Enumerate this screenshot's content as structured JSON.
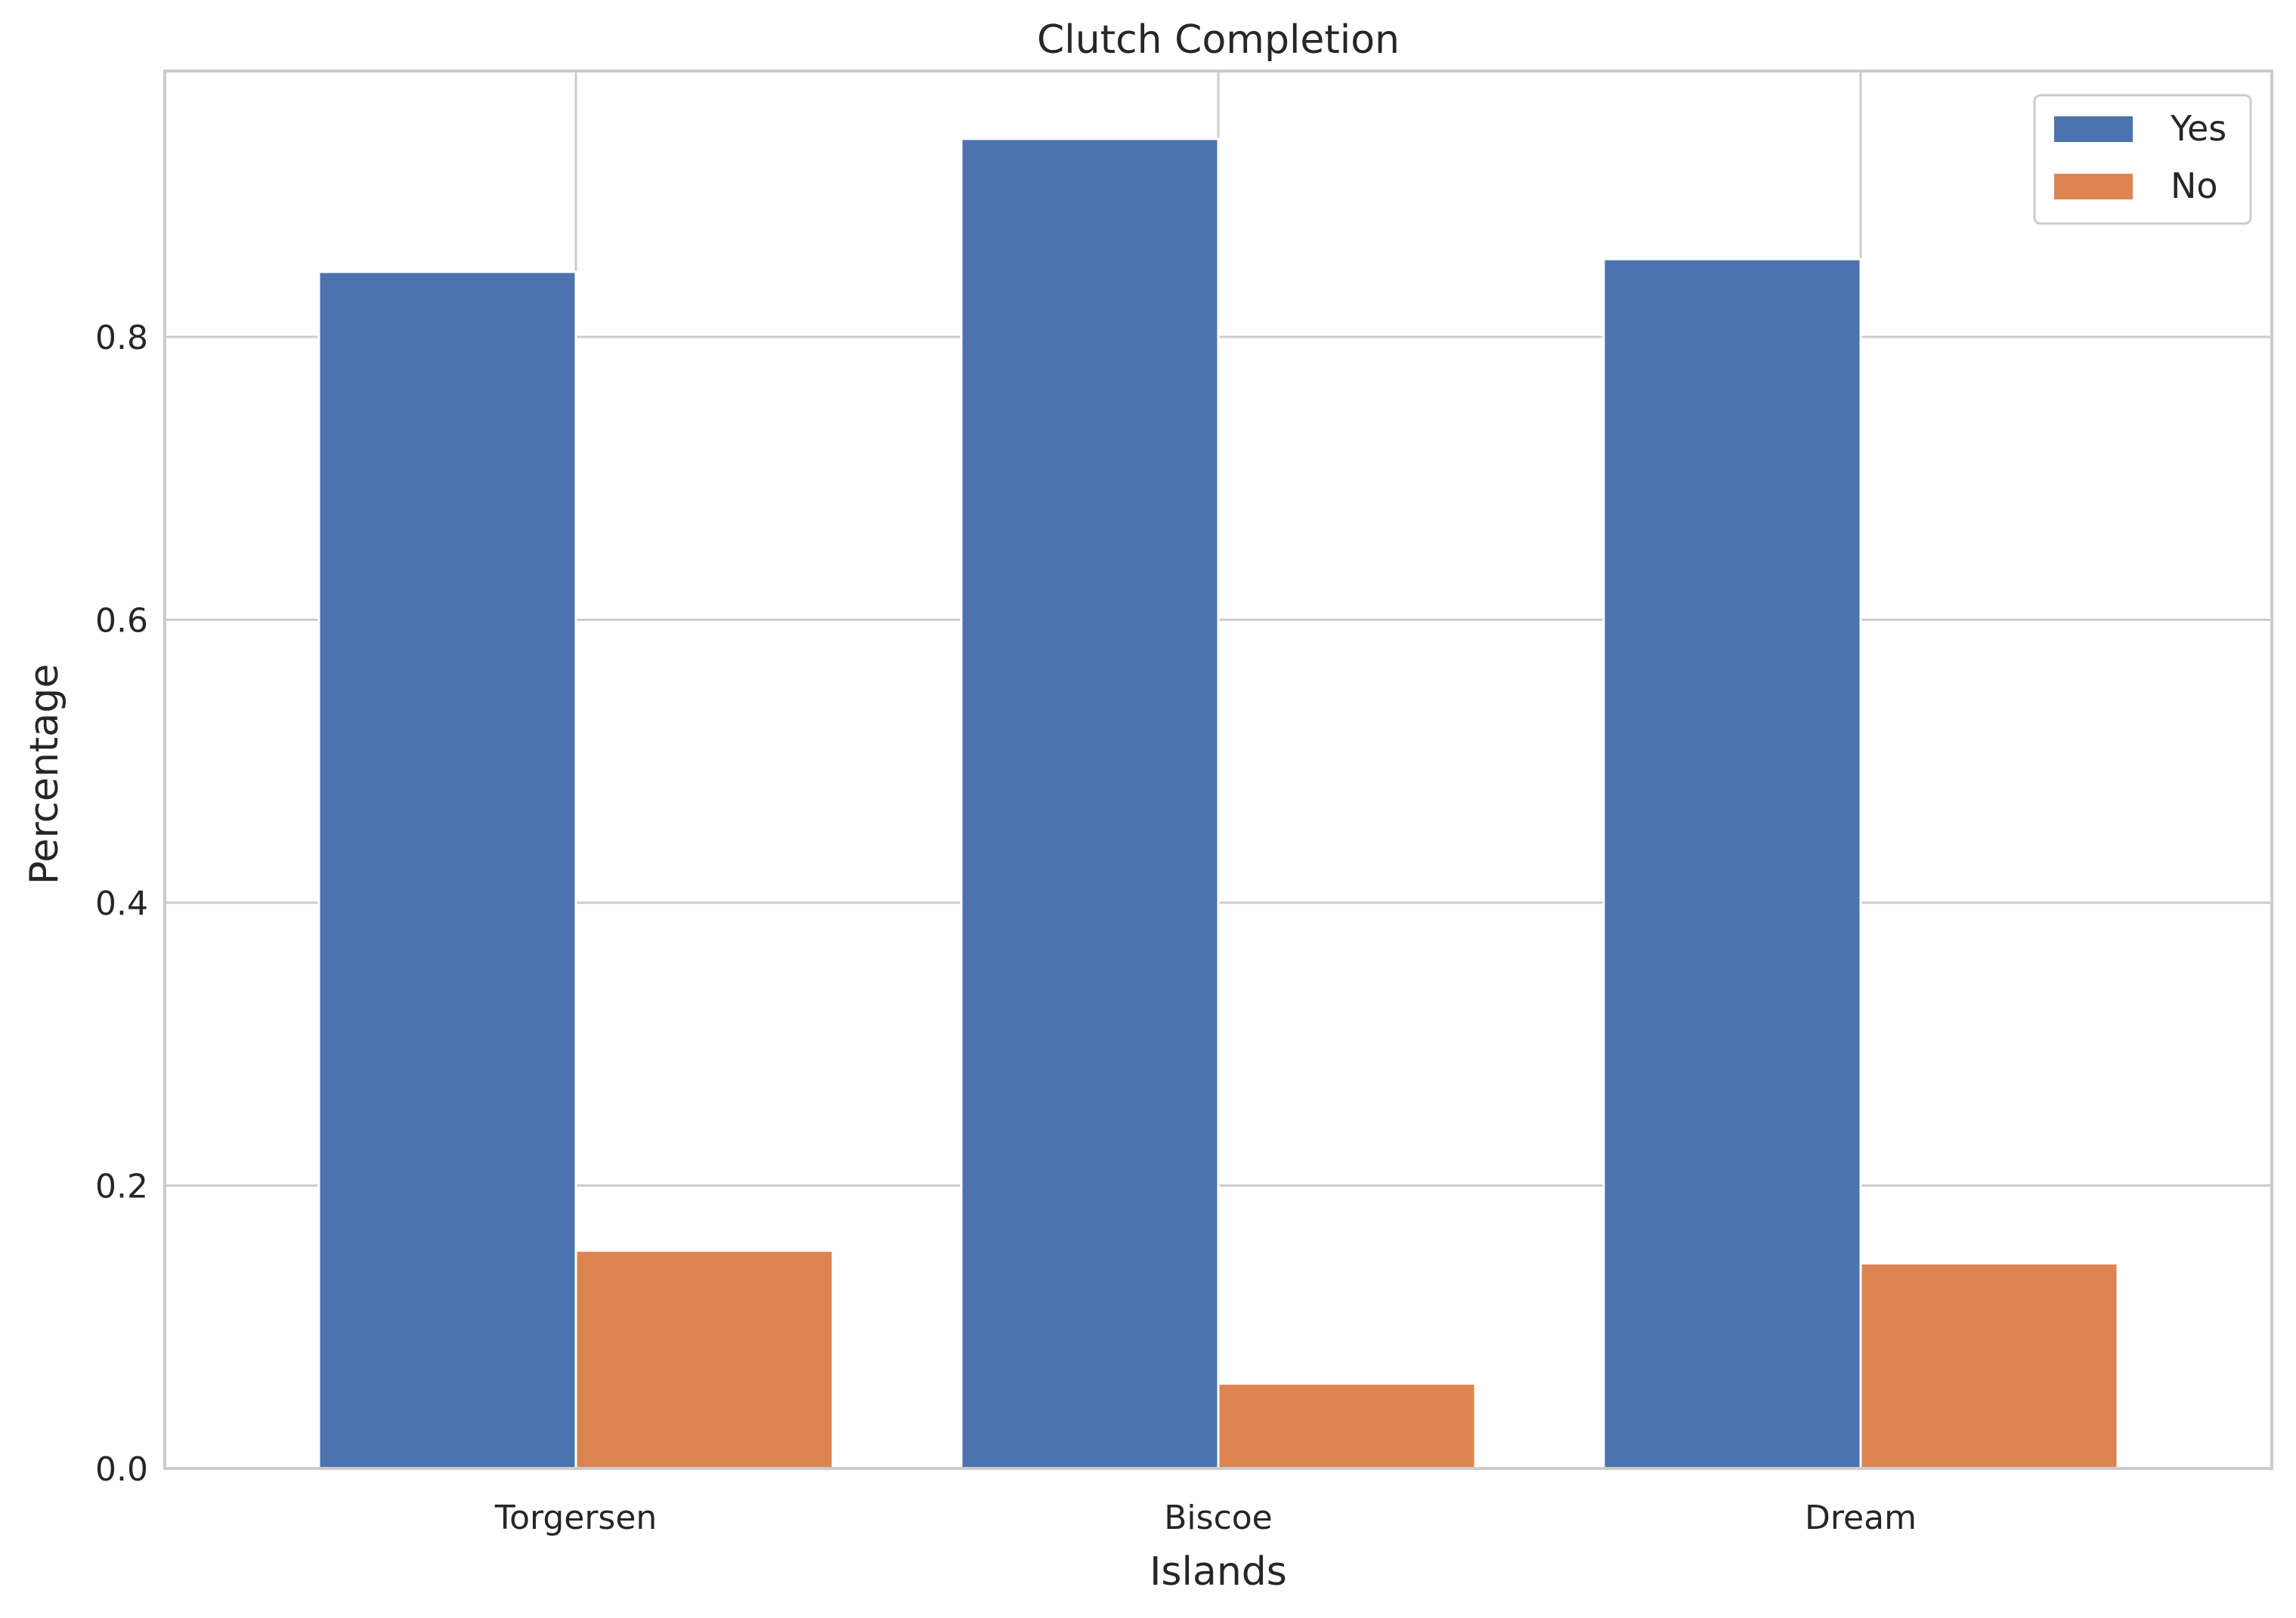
{
  "chart_data": {
    "type": "bar",
    "title": "Clutch Completion",
    "xlabel": "Islands",
    "ylabel": "Percentage",
    "categories": [
      "Torgersen",
      "Biscoe",
      "Dream"
    ],
    "series": [
      {
        "name": "Yes",
        "values": [
          0.846,
          0.94,
          0.855
        ],
        "color": "#4c72b0"
      },
      {
        "name": "No",
        "values": [
          0.154,
          0.06,
          0.145
        ],
        "color": "#dd8452"
      }
    ],
    "ylim": [
      0.0,
      0.988
    ],
    "yticks": [
      0.0,
      0.2,
      0.4,
      0.6,
      0.8
    ],
    "ytick_labels": [
      "0.0",
      "0.2",
      "0.4",
      "0.6",
      "0.8"
    ],
    "grid": true,
    "legend_position": "top-right",
    "colors": {
      "grid": "#cccccc",
      "spine": "#cccccc",
      "text": "#262626",
      "background": "#ffffff"
    }
  }
}
